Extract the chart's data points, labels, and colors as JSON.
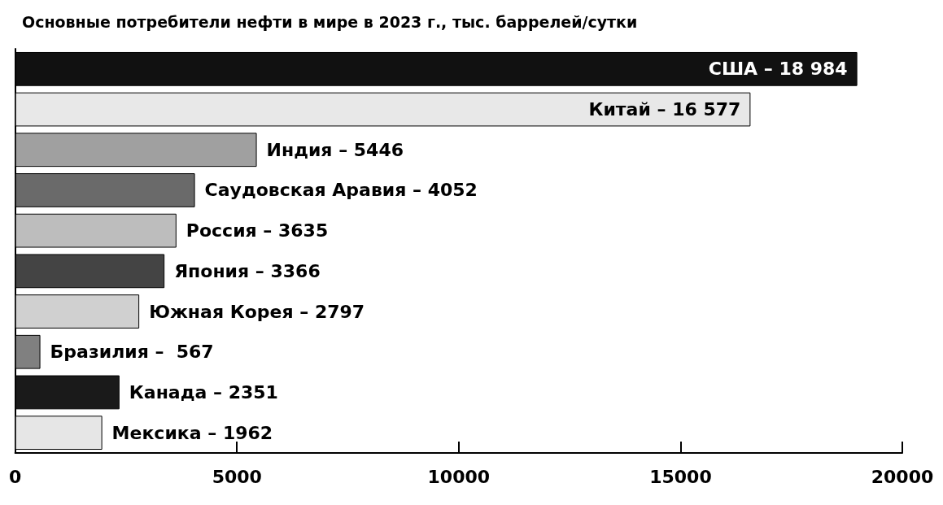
{
  "chart_data": {
    "type": "bar",
    "orientation": "horizontal",
    "title": "Основные потребители нефти в мире в 2023 г., тыс. баррелей/сутки",
    "categories": [
      "США –",
      "Китай –",
      "Индия –",
      "Саудовская Аравия –",
      "Россия –",
      "Япония –",
      "Южная Корея –",
      "Бразилия –",
      "Канада –",
      "Мексика –"
    ],
    "values": [
      18984,
      16577,
      5446,
      4052,
      3635,
      3366,
      2797,
      567,
      2351,
      1962
    ],
    "colors": [
      "#111111",
      "#e8e8e8",
      "#a0a0a0",
      "#6a6a6a",
      "#bdbdbd",
      "#444444",
      "#d0d0d0",
      "#808080",
      "#1a1a1a",
      "#e6e6e6"
    ],
    "value_labels": [
      "18 984",
      "16 577",
      "5446",
      "4052",
      "3635",
      "3366",
      "2797",
      " 567",
      "2351",
      "1962"
    ],
    "xlim": [
      0,
      20000
    ],
    "xticks": [
      0,
      5000,
      10000,
      15000,
      20000
    ],
    "grid": false
  }
}
